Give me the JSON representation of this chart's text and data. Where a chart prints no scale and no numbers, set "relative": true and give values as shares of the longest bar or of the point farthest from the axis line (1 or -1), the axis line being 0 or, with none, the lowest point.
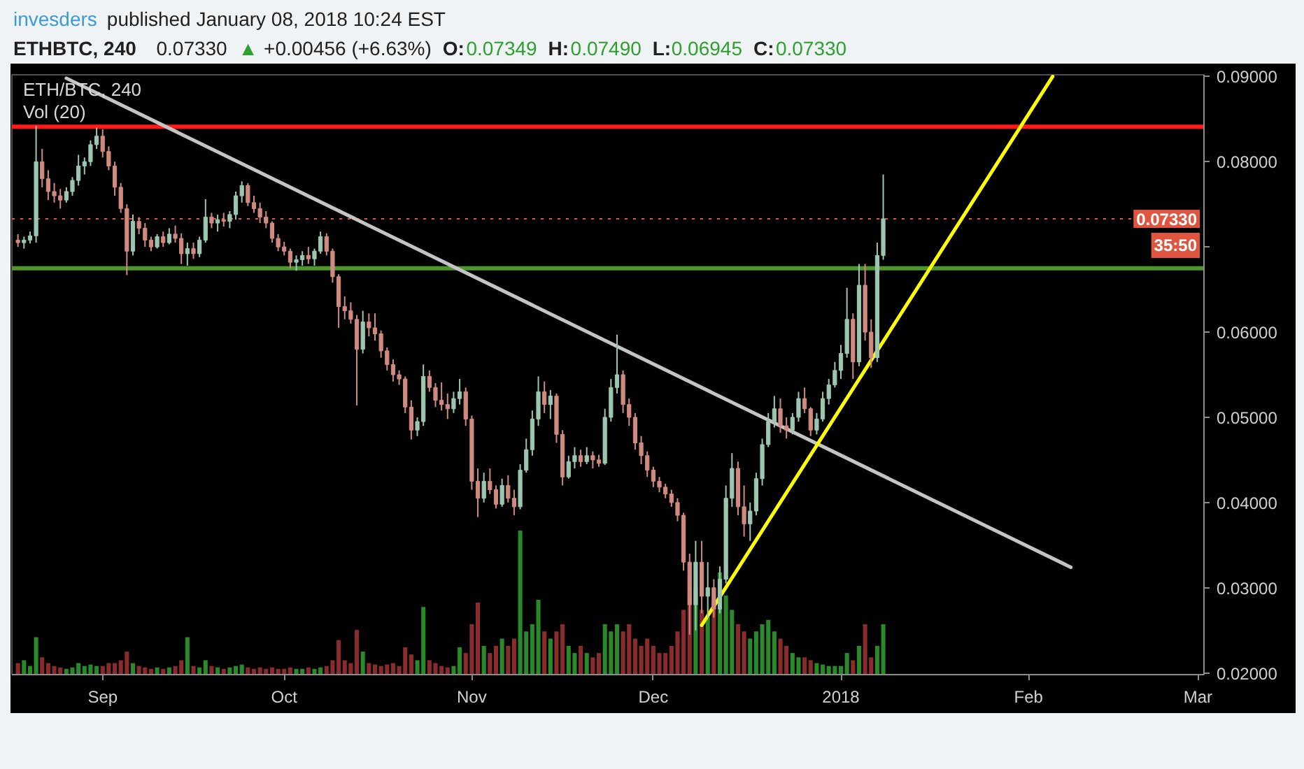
{
  "chart_data": [
    {
      "type": "candlestick",
      "title": "ETHBTC, 240",
      "subtitle": "invesders published January 08, 2018 10:24 EST",
      "x": [
        "2017-08-18",
        "2017-08-19",
        "2017-08-20",
        "2017-08-21",
        "2017-08-22",
        "2017-08-23",
        "2017-08-24",
        "2017-08-25",
        "2017-08-26",
        "2017-08-27",
        "2017-08-28",
        "2017-08-29",
        "2017-08-30",
        "2017-08-31",
        "2017-09-01",
        "2017-09-02",
        "2017-09-03",
        "2017-09-04",
        "2017-09-05",
        "2017-09-06",
        "2017-09-07",
        "2017-09-08",
        "2017-09-09",
        "2017-09-10",
        "2017-09-11",
        "2017-09-12",
        "2017-09-13",
        "2017-09-14",
        "2017-09-15",
        "2017-09-16",
        "2017-09-17",
        "2017-09-18",
        "2017-09-19",
        "2017-09-20",
        "2017-09-21",
        "2017-09-22",
        "2017-09-23",
        "2017-09-24",
        "2017-09-25",
        "2017-09-26",
        "2017-09-27",
        "2017-09-28",
        "2017-09-29",
        "2017-09-30",
        "2017-10-01",
        "2017-10-02",
        "2017-10-03",
        "2017-10-04",
        "2017-10-05",
        "2017-10-06",
        "2017-10-07",
        "2017-10-08",
        "2017-10-09",
        "2017-10-10",
        "2017-10-11",
        "2017-10-12",
        "2017-10-13",
        "2017-10-14",
        "2017-10-15",
        "2017-10-16",
        "2017-10-17",
        "2017-10-18",
        "2017-10-19",
        "2017-10-20",
        "2017-10-21",
        "2017-10-22",
        "2017-10-23",
        "2017-10-24",
        "2017-10-25",
        "2017-10-26",
        "2017-10-27",
        "2017-10-28",
        "2017-10-29",
        "2017-10-30",
        "2017-10-31",
        "2017-11-01",
        "2017-11-02",
        "2017-11-03",
        "2017-11-04",
        "2017-11-05",
        "2017-11-06",
        "2017-11-07",
        "2017-11-08",
        "2017-11-09",
        "2017-11-10",
        "2017-11-11",
        "2017-11-12",
        "2017-11-13",
        "2017-11-14",
        "2017-11-15",
        "2017-11-16",
        "2017-11-17",
        "2017-11-18",
        "2017-11-19",
        "2017-11-20",
        "2017-11-21",
        "2017-11-22",
        "2017-11-23",
        "2017-11-24",
        "2017-11-25",
        "2017-11-26",
        "2017-11-27",
        "2017-11-28",
        "2017-11-29",
        "2017-11-30",
        "2017-12-01",
        "2017-12-02",
        "2017-12-03",
        "2017-12-04",
        "2017-12-05",
        "2017-12-06",
        "2017-12-07",
        "2017-12-08",
        "2017-12-09",
        "2017-12-10",
        "2017-12-11",
        "2017-12-12",
        "2017-12-13",
        "2017-12-14",
        "2017-12-15",
        "2017-12-16",
        "2017-12-17",
        "2017-12-18",
        "2017-12-19",
        "2017-12-20",
        "2017-12-21",
        "2017-12-22",
        "2017-12-23",
        "2017-12-24",
        "2017-12-25",
        "2017-12-26",
        "2017-12-27",
        "2017-12-28",
        "2017-12-29",
        "2017-12-30",
        "2017-12-31",
        "2018-01-01",
        "2018-01-02",
        "2018-01-03",
        "2018-01-04",
        "2018-01-05",
        "2018-01-06",
        "2018-01-07",
        "2018-01-08"
      ],
      "series": [
        {
          "ohlc": [
            [
              0.0708,
              0.0715,
              0.07,
              0.0705
            ],
            [
              0.0705,
              0.0712,
              0.0698,
              0.0708
            ],
            [
              0.0708,
              0.0718,
              0.0704,
              0.0713
            ],
            [
              0.0713,
              0.0842,
              0.0705,
              0.08
            ],
            [
              0.08,
              0.0815,
              0.077,
              0.078
            ],
            [
              0.078,
              0.079,
              0.0755,
              0.0765
            ],
            [
              0.0765,
              0.0775,
              0.0752,
              0.076
            ],
            [
              0.076,
              0.0768,
              0.0745,
              0.0755
            ],
            [
              0.0755,
              0.077,
              0.0752,
              0.0765
            ],
            [
              0.0765,
              0.0782,
              0.076,
              0.0778
            ],
            [
              0.0778,
              0.0808,
              0.0772,
              0.0795
            ],
            [
              0.0795,
              0.0805,
              0.0785,
              0.08
            ],
            [
              0.08,
              0.0825,
              0.0795,
              0.082
            ],
            [
              0.082,
              0.084,
              0.0815,
              0.083
            ],
            [
              0.083,
              0.0838,
              0.0805,
              0.0812
            ],
            [
              0.0812,
              0.0818,
              0.079,
              0.0795
            ],
            [
              0.0795,
              0.08,
              0.076,
              0.077
            ],
            [
              0.077,
              0.0775,
              0.074,
              0.0745
            ],
            [
              0.0745,
              0.075,
              0.0667,
              0.0695
            ],
            [
              0.0695,
              0.0738,
              0.069,
              0.073
            ],
            [
              0.073,
              0.0735,
              0.0715,
              0.0722
            ],
            [
              0.0722,
              0.0728,
              0.07,
              0.0708
            ],
            [
              0.0708,
              0.0712,
              0.0695,
              0.07
            ],
            [
              0.07,
              0.0715,
              0.0698,
              0.0712
            ],
            [
              0.0712,
              0.0718,
              0.07,
              0.0705
            ],
            [
              0.0705,
              0.0722,
              0.0703,
              0.0715
            ],
            [
              0.0715,
              0.0725,
              0.0705,
              0.071
            ],
            [
              0.071,
              0.0716,
              0.068,
              0.0692
            ],
            [
              0.0692,
              0.0705,
              0.0678,
              0.0698
            ],
            [
              0.0698,
              0.0705,
              0.0686,
              0.0692
            ],
            [
              0.0692,
              0.0712,
              0.0688,
              0.0708
            ],
            [
              0.0708,
              0.0756,
              0.0705,
              0.0735
            ],
            [
              0.0735,
              0.074,
              0.0722,
              0.0728
            ],
            [
              0.0728,
              0.0738,
              0.0718,
              0.0732
            ],
            [
              0.0732,
              0.074,
              0.0724,
              0.073
            ],
            [
              0.073,
              0.0742,
              0.0722,
              0.0738
            ],
            [
              0.0738,
              0.0765,
              0.0732,
              0.076
            ],
            [
              0.076,
              0.0777,
              0.0752,
              0.0772
            ],
            [
              0.0772,
              0.0775,
              0.0748,
              0.0752
            ],
            [
              0.0752,
              0.076,
              0.074,
              0.0745
            ],
            [
              0.0745,
              0.0752,
              0.0728,
              0.0735
            ],
            [
              0.0735,
              0.0742,
              0.0722,
              0.0728
            ],
            [
              0.0728,
              0.073,
              0.0705,
              0.071
            ],
            [
              0.071,
              0.0715,
              0.0695,
              0.07
            ],
            [
              0.07,
              0.0706,
              0.069,
              0.0695
            ],
            [
              0.0695,
              0.0698,
              0.0675,
              0.0682
            ],
            [
              0.0682,
              0.069,
              0.0672,
              0.0685
            ],
            [
              0.0685,
              0.0695,
              0.0678,
              0.069
            ],
            [
              0.069,
              0.07,
              0.068,
              0.0686
            ],
            [
              0.0686,
              0.0698,
              0.0678,
              0.0695
            ],
            [
              0.0695,
              0.0718,
              0.0692,
              0.0712
            ],
            [
              0.0712,
              0.0716,
              0.069,
              0.0695
            ],
            [
              0.0695,
              0.0698,
              0.0658,
              0.0665
            ],
            [
              0.0665,
              0.0668,
              0.0605,
              0.063
            ],
            [
              0.063,
              0.0642,
              0.0615,
              0.0625
            ],
            [
              0.0625,
              0.0635,
              0.061,
              0.0615
            ],
            [
              0.0615,
              0.062,
              0.0514,
              0.058
            ],
            [
              0.058,
              0.0625,
              0.0575,
              0.0612
            ],
            [
              0.0612,
              0.0622,
              0.0595,
              0.0605
            ],
            [
              0.0605,
              0.0622,
              0.059,
              0.0598
            ],
            [
              0.0598,
              0.0602,
              0.057,
              0.0578
            ],
            [
              0.0578,
              0.0582,
              0.0555,
              0.0562
            ],
            [
              0.0562,
              0.0568,
              0.0542,
              0.055
            ],
            [
              0.055,
              0.0555,
              0.0538,
              0.0545
            ],
            [
              0.0545,
              0.0548,
              0.0505,
              0.0512
            ],
            [
              0.0512,
              0.052,
              0.0474,
              0.0485
            ],
            [
              0.0485,
              0.05,
              0.0478,
              0.0495
            ],
            [
              0.0495,
              0.0562,
              0.049,
              0.0548
            ],
            [
              0.0548,
              0.0555,
              0.053,
              0.0535
            ],
            [
              0.0535,
              0.054,
              0.0512,
              0.052
            ],
            [
              0.052,
              0.0541,
              0.0508,
              0.0515
            ],
            [
              0.0515,
              0.0528,
              0.0498,
              0.051
            ],
            [
              0.051,
              0.053,
              0.0505,
              0.0522
            ],
            [
              0.0522,
              0.0545,
              0.0515,
              0.053
            ],
            [
              0.053,
              0.0535,
              0.049,
              0.0498
            ],
            [
              0.0498,
              0.0502,
              0.0415,
              0.0425
            ],
            [
              0.0425,
              0.044,
              0.0383,
              0.0405
            ],
            [
              0.0405,
              0.0435,
              0.04,
              0.0425
            ],
            [
              0.0425,
              0.044,
              0.041,
              0.0415
            ],
            [
              0.0415,
              0.042,
              0.0393,
              0.0398
            ],
            [
              0.0398,
              0.0428,
              0.0395,
              0.042
            ],
            [
              0.042,
              0.0432,
              0.04,
              0.0405
            ],
            [
              0.0405,
              0.0415,
              0.0385,
              0.0395
            ],
            [
              0.0395,
              0.0445,
              0.0392,
              0.0438
            ],
            [
              0.0438,
              0.0475,
              0.0435,
              0.0462
            ],
            [
              0.0462,
              0.0508,
              0.0455,
              0.0498
            ],
            [
              0.0498,
              0.0548,
              0.049,
              0.053
            ],
            [
              0.053,
              0.0542,
              0.0505,
              0.0515
            ],
            [
              0.0515,
              0.0532,
              0.0498,
              0.0525
            ],
            [
              0.0525,
              0.0528,
              0.047,
              0.048
            ],
            [
              0.048,
              0.0485,
              0.042,
              0.043
            ],
            [
              0.043,
              0.0455,
              0.0428,
              0.0448
            ],
            [
              0.0448,
              0.0465,
              0.044,
              0.0455
            ],
            [
              0.0455,
              0.0462,
              0.0442,
              0.0448
            ],
            [
              0.0448,
              0.0465,
              0.0445,
              0.0455
            ],
            [
              0.0455,
              0.046,
              0.044,
              0.045
            ],
            [
              0.045,
              0.0456,
              0.0442,
              0.0446
            ],
            [
              0.0446,
              0.051,
              0.0444,
              0.05
            ],
            [
              0.05,
              0.0545,
              0.0495,
              0.0535
            ],
            [
              0.0535,
              0.0597,
              0.0528,
              0.055
            ],
            [
              0.055,
              0.0555,
              0.0505,
              0.0515
            ],
            [
              0.0515,
              0.0522,
              0.049,
              0.05
            ],
            [
              0.05,
              0.0505,
              0.0462,
              0.047
            ],
            [
              0.047,
              0.0478,
              0.0445,
              0.0455
            ],
            [
              0.0455,
              0.046,
              0.043,
              0.0438
            ],
            [
              0.0438,
              0.0442,
              0.0418,
              0.0425
            ],
            [
              0.0425,
              0.043,
              0.0412,
              0.0418
            ],
            [
              0.0418,
              0.0422,
              0.0405,
              0.041
            ],
            [
              0.041,
              0.0415,
              0.0395,
              0.04
            ],
            [
              0.04,
              0.0405,
              0.0378,
              0.0385
            ],
            [
              0.0385,
              0.0388,
              0.032,
              0.033
            ],
            [
              0.033,
              0.034,
              0.0245,
              0.028
            ],
            [
              0.028,
              0.0355,
              0.025,
              0.033
            ],
            [
              0.033,
              0.0355,
              0.027,
              0.029
            ],
            [
              0.029,
              0.033,
              0.0265,
              0.03
            ],
            [
              0.03,
              0.031,
              0.0265,
              0.0275
            ],
            [
              0.0275,
              0.0325,
              0.027,
              0.031
            ],
            [
              0.031,
              0.042,
              0.0305,
              0.0405
            ],
            [
              0.0405,
              0.0458,
              0.0395,
              0.044
            ],
            [
              0.044,
              0.0448,
              0.0385,
              0.0395
            ],
            [
              0.0395,
              0.042,
              0.036,
              0.0375
            ],
            [
              0.0375,
              0.04,
              0.0355,
              0.039
            ],
            [
              0.039,
              0.0435,
              0.0385,
              0.0428
            ],
            [
              0.0428,
              0.0475,
              0.042,
              0.0468
            ],
            [
              0.0468,
              0.0505,
              0.0465,
              0.0495
            ],
            [
              0.0495,
              0.0525,
              0.0488,
              0.051
            ],
            [
              0.051,
              0.0522,
              0.0482,
              0.049
            ],
            [
              0.049,
              0.05,
              0.0475,
              0.0485
            ],
            [
              0.0485,
              0.0505,
              0.048,
              0.05
            ],
            [
              0.05,
              0.053,
              0.0495,
              0.0522
            ],
            [
              0.0522,
              0.0535,
              0.0505,
              0.051
            ],
            [
              0.051,
              0.0512,
              0.0478,
              0.0485
            ],
            [
              0.0485,
              0.0505,
              0.048,
              0.0498
            ],
            [
              0.0498,
              0.053,
              0.0495,
              0.0522
            ],
            [
              0.0522,
              0.0545,
              0.0515,
              0.0538
            ],
            [
              0.0538,
              0.0565,
              0.0535,
              0.0555
            ],
            [
              0.0555,
              0.0585,
              0.0545,
              0.0575
            ],
            [
              0.0575,
              0.0652,
              0.057,
              0.0615
            ],
            [
              0.0615,
              0.0622,
              0.0545,
              0.0565
            ],
            [
              0.0565,
              0.068,
              0.056,
              0.0655
            ],
            [
              0.0655,
              0.068,
              0.059,
              0.06
            ],
            [
              0.06,
              0.0615,
              0.0558,
              0.057
            ],
            [
              0.057,
              0.0705,
              0.0565,
              0.069
            ],
            [
              0.069,
              0.0785,
              0.0685,
              0.0733
            ]
          ],
          "colors": [
            "#d08a80",
            "#9cc6b0",
            "#9cc6b0",
            "#9cc6b0",
            "#d08a80",
            "#d08a80",
            "#d08a80",
            "#d08a80",
            "#9cc6b0",
            "#9cc6b0",
            "#9cc6b0",
            "#9cc6b0",
            "#9cc6b0",
            "#9cc6b0",
            "#d08a80",
            "#d08a80",
            "#d08a80",
            "#d08a80",
            "#d08a80",
            "#9cc6b0",
            "#d08a80",
            "#d08a80",
            "#d08a80",
            "#9cc6b0",
            "#d08a80",
            "#9cc6b0",
            "#d08a80",
            "#d08a80",
            "#9cc6b0",
            "#d08a80",
            "#9cc6b0",
            "#9cc6b0",
            "#d08a80",
            "#9cc6b0",
            "#d08a80",
            "#9cc6b0",
            "#9cc6b0",
            "#9cc6b0",
            "#d08a80",
            "#d08a80",
            "#d08a80",
            "#d08a80",
            "#d08a80",
            "#d08a80",
            "#d08a80",
            "#d08a80",
            "#9cc6b0",
            "#9cc6b0",
            "#d08a80",
            "#9cc6b0",
            "#9cc6b0",
            "#d08a80",
            "#d08a80",
            "#d08a80",
            "#d08a80",
            "#d08a80",
            "#d08a80",
            "#9cc6b0",
            "#d08a80",
            "#d08a80",
            "#d08a80",
            "#d08a80",
            "#d08a80",
            "#d08a80",
            "#d08a80",
            "#d08a80",
            "#9cc6b0",
            "#9cc6b0",
            "#d08a80",
            "#d08a80",
            "#d08a80",
            "#d08a80",
            "#9cc6b0",
            "#9cc6b0",
            "#d08a80",
            "#d08a80",
            "#d08a80",
            "#9cc6b0",
            "#d08a80",
            "#d08a80",
            "#9cc6b0",
            "#d08a80",
            "#d08a80",
            "#9cc6b0",
            "#9cc6b0",
            "#9cc6b0",
            "#9cc6b0",
            "#d08a80",
            "#9cc6b0",
            "#d08a80",
            "#d08a80",
            "#9cc6b0",
            "#9cc6b0",
            "#d08a80",
            "#9cc6b0",
            "#d08a80",
            "#d08a80",
            "#9cc6b0",
            "#9cc6b0",
            "#9cc6b0",
            "#d08a80",
            "#d08a80",
            "#d08a80",
            "#d08a80",
            "#d08a80",
            "#d08a80",
            "#d08a80",
            "#d08a80",
            "#d08a80",
            "#d08a80",
            "#d08a80",
            "#d08a80",
            "#9cc6b0",
            "#d08a80",
            "#9cc6b0",
            "#d08a80",
            "#9cc6b0",
            "#9cc6b0",
            "#9cc6b0",
            "#d08a80",
            "#d08a80",
            "#9cc6b0",
            "#9cc6b0",
            "#9cc6b0",
            "#9cc6b0",
            "#9cc6b0",
            "#d08a80",
            "#d08a80",
            "#9cc6b0",
            "#9cc6b0",
            "#d08a80",
            "#d08a80",
            "#9cc6b0",
            "#9cc6b0",
            "#9cc6b0",
            "#9cc6b0",
            "#9cc6b0",
            "#9cc6b0",
            "#d08a80",
            "#9cc6b0",
            "#d08a80",
            "#d08a80",
            "#9cc6b0",
            "#9cc6b0"
          ]
        },
        {
          "type": "line",
          "color": "#c4c4c4",
          "x": [
            "2017-08-26",
            "2018-02-08"
          ],
          "values": [
            0.0898,
            0.0324
          ]
        },
        {
          "type": "line",
          "color": "#ffff00",
          "x": [
            "2017-12-09",
            "2018-02-05"
          ],
          "values": [
            0.0256,
            0.09
          ]
        }
      ],
      "xlim": [
        "2017-08-17",
        "2018-03-02"
      ],
      "xticks": [
        {
          "value": "2017-09-01",
          "label": "Sep"
        },
        {
          "value": "2017-10-01",
          "label": "Oct"
        },
        {
          "value": "2017-11-01",
          "label": "Nov"
        },
        {
          "value": "2017-12-01",
          "label": "Dec"
        },
        {
          "value": "2018-01-01",
          "label": "2018"
        },
        {
          "value": "2018-02-01",
          "label": "Feb"
        },
        {
          "value": "2018-03-01",
          "label": "Mar"
        }
      ],
      "ylim": [
        0.0198,
        0.0902
      ],
      "yticks": [
        {
          "value": 0.02,
          "label": "0.02000"
        },
        {
          "value": 0.03,
          "label": "0.03000"
        },
        {
          "value": 0.04,
          "label": "0.04000"
        },
        {
          "value": 0.05,
          "label": "0.05000"
        },
        {
          "value": 0.06,
          "label": "0.06000"
        },
        {
          "value": 0.07,
          "label": null
        },
        {
          "value": 0.08,
          "label": "0.08000"
        },
        {
          "value": 0.09,
          "label": "0.09000"
        }
      ],
      "ref_lines": [
        {
          "axis": "y",
          "value": 0.0841,
          "color": "#ff1a1a"
        },
        {
          "axis": "y",
          "value": 0.0675,
          "color": "#4f962c"
        },
        {
          "axis": "y",
          "value": 0.0733,
          "label": "0.07330",
          "color": "#e0553f",
          "line_style": "dotted"
        }
      ],
      "annotations": [
        "0.07330",
        "▲ +0.00456 (+6.63%)",
        "O:0.07349",
        "H:0.07490",
        "L:0.06945",
        "C:0.07330",
        "ETH/BTC, 240",
        "35:50"
      ]
    },
    {
      "type": "bar",
      "relative": true,
      "title": "Vol (20)",
      "tick_labels": false,
      "xlim": [
        "2017-08-17",
        "2018-03-02"
      ],
      "x": [
        "2017-08-18",
        "2017-08-19",
        "2017-08-20",
        "2017-08-21",
        "2017-08-22",
        "2017-08-23",
        "2017-08-24",
        "2017-08-25",
        "2017-08-26",
        "2017-08-27",
        "2017-08-28",
        "2017-08-29",
        "2017-08-30",
        "2017-08-31",
        "2017-09-01",
        "2017-09-02",
        "2017-09-03",
        "2017-09-04",
        "2017-09-05",
        "2017-09-06",
        "2017-09-07",
        "2017-09-08",
        "2017-09-09",
        "2017-09-10",
        "2017-09-11",
        "2017-09-12",
        "2017-09-13",
        "2017-09-14",
        "2017-09-15",
        "2017-09-16",
        "2017-09-17",
        "2017-09-18",
        "2017-09-19",
        "2017-09-20",
        "2017-09-21",
        "2017-09-22",
        "2017-09-23",
        "2017-09-24",
        "2017-09-25",
        "2017-09-26",
        "2017-09-27",
        "2017-09-28",
        "2017-09-29",
        "2017-09-30",
        "2017-10-01",
        "2017-10-02",
        "2017-10-03",
        "2017-10-04",
        "2017-10-05",
        "2017-10-06",
        "2017-10-07",
        "2017-10-08",
        "2017-10-09",
        "2017-10-10",
        "2017-10-11",
        "2017-10-12",
        "2017-10-13",
        "2017-10-14",
        "2017-10-15",
        "2017-10-16",
        "2017-10-17",
        "2017-10-18",
        "2017-10-19",
        "2017-10-20",
        "2017-10-21",
        "2017-10-22",
        "2017-10-23",
        "2017-10-24",
        "2017-10-25",
        "2017-10-26",
        "2017-10-27",
        "2017-10-28",
        "2017-10-29",
        "2017-10-30",
        "2017-10-31",
        "2017-11-01",
        "2017-11-02",
        "2017-11-03",
        "2017-11-04",
        "2017-11-05",
        "2017-11-06",
        "2017-11-07",
        "2017-11-08",
        "2017-11-09",
        "2017-11-10",
        "2017-11-11",
        "2017-11-12",
        "2017-11-13",
        "2017-11-14",
        "2017-11-15",
        "2017-11-16",
        "2017-11-17",
        "2017-11-18",
        "2017-11-19",
        "2017-11-20",
        "2017-11-21",
        "2017-11-22",
        "2017-11-23",
        "2017-11-24",
        "2017-11-25",
        "2017-11-26",
        "2017-11-27",
        "2017-11-28",
        "2017-11-29",
        "2017-11-30",
        "2017-12-01",
        "2017-12-02",
        "2017-12-03",
        "2017-12-04",
        "2017-12-05",
        "2017-12-06",
        "2017-12-07",
        "2017-12-08",
        "2017-12-09",
        "2017-12-10",
        "2017-12-11",
        "2017-12-12",
        "2017-12-13",
        "2017-12-14",
        "2017-12-15",
        "2017-12-16",
        "2017-12-17",
        "2017-12-18",
        "2017-12-19",
        "2017-12-20",
        "2017-12-21",
        "2017-12-22",
        "2017-12-23",
        "2017-12-24",
        "2017-12-25",
        "2017-12-26",
        "2017-12-27",
        "2017-12-28",
        "2017-12-29",
        "2017-12-30",
        "2017-12-31",
        "2018-01-01",
        "2018-01-02",
        "2018-01-03",
        "2018-01-04",
        "2018-01-05",
        "2018-01-06",
        "2018-01-07",
        "2018-01-08"
      ],
      "values": [
        0.08,
        0.1,
        0.06,
        0.26,
        0.12,
        0.08,
        0.06,
        0.05,
        0.04,
        0.05,
        0.08,
        0.06,
        0.07,
        0.06,
        0.06,
        0.08,
        0.08,
        0.1,
        0.16,
        0.08,
        0.06,
        0.05,
        0.04,
        0.05,
        0.04,
        0.05,
        0.06,
        0.1,
        0.26,
        0.06,
        0.05,
        0.1,
        0.06,
        0.05,
        0.04,
        0.05,
        0.06,
        0.07,
        0.05,
        0.04,
        0.05,
        0.04,
        0.05,
        0.04,
        0.04,
        0.05,
        0.04,
        0.04,
        0.05,
        0.04,
        0.05,
        0.06,
        0.1,
        0.24,
        0.1,
        0.08,
        0.31,
        0.16,
        0.08,
        0.07,
        0.06,
        0.07,
        0.08,
        0.06,
        0.19,
        0.14,
        0.1,
        0.47,
        0.1,
        0.08,
        0.06,
        0.05,
        0.06,
        0.19,
        0.15,
        0.35,
        0.5,
        0.2,
        0.15,
        0.2,
        0.25,
        0.2,
        0.25,
        1.0,
        0.3,
        0.35,
        0.52,
        0.3,
        0.25,
        0.3,
        0.35,
        0.2,
        0.15,
        0.2,
        0.15,
        0.12,
        0.15,
        0.35,
        0.3,
        0.35,
        0.3,
        0.35,
        0.25,
        0.2,
        0.25,
        0.2,
        0.15,
        0.15,
        0.2,
        0.3,
        0.45,
        0.55,
        0.6,
        0.45,
        0.4,
        0.5,
        0.71,
        0.55,
        0.45,
        0.35,
        0.3,
        0.25,
        0.3,
        0.35,
        0.38,
        0.3,
        0.25,
        0.2,
        0.15,
        0.12,
        0.12,
        0.1,
        0.08,
        0.07,
        0.06,
        0.06,
        0.06,
        0.15,
        0.1,
        0.2,
        0.35,
        0.12,
        0.2,
        0.35
      ],
      "colors": [
        "#8b2c2c",
        "#2a8a2a",
        "#2a8a2a",
        "#2a8a2a",
        "#8b2c2c",
        "#8b2c2c",
        "#8b2c2c",
        "#8b2c2c",
        "#2a8a2a",
        "#2a8a2a",
        "#2a8a2a",
        "#2a8a2a",
        "#2a8a2a",
        "#2a8a2a",
        "#8b2c2c",
        "#8b2c2c",
        "#8b2c2c",
        "#8b2c2c",
        "#8b2c2c",
        "#2a8a2a",
        "#8b2c2c",
        "#8b2c2c",
        "#8b2c2c",
        "#2a8a2a",
        "#8b2c2c",
        "#2a8a2a",
        "#8b2c2c",
        "#8b2c2c",
        "#2a8a2a",
        "#8b2c2c",
        "#2a8a2a",
        "#2a8a2a",
        "#8b2c2c",
        "#2a8a2a",
        "#8b2c2c",
        "#2a8a2a",
        "#2a8a2a",
        "#2a8a2a",
        "#8b2c2c",
        "#8b2c2c",
        "#8b2c2c",
        "#8b2c2c",
        "#8b2c2c",
        "#8b2c2c",
        "#8b2c2c",
        "#8b2c2c",
        "#2a8a2a",
        "#2a8a2a",
        "#8b2c2c",
        "#2a8a2a",
        "#2a8a2a",
        "#8b2c2c",
        "#8b2c2c",
        "#8b2c2c",
        "#8b2c2c",
        "#8b2c2c",
        "#8b2c2c",
        "#2a8a2a",
        "#8b2c2c",
        "#8b2c2c",
        "#8b2c2c",
        "#8b2c2c",
        "#8b2c2c",
        "#8b2c2c",
        "#8b2c2c",
        "#8b2c2c",
        "#2a8a2a",
        "#2a8a2a",
        "#8b2c2c",
        "#8b2c2c",
        "#8b2c2c",
        "#8b2c2c",
        "#2a8a2a",
        "#2a8a2a",
        "#8b2c2c",
        "#8b2c2c",
        "#8b2c2c",
        "#2a8a2a",
        "#8b2c2c",
        "#8b2c2c",
        "#2a8a2a",
        "#8b2c2c",
        "#8b2c2c",
        "#2a8a2a",
        "#2a8a2a",
        "#2a8a2a",
        "#2a8a2a",
        "#8b2c2c",
        "#2a8a2a",
        "#8b2c2c",
        "#8b2c2c",
        "#2a8a2a",
        "#2a8a2a",
        "#8b2c2c",
        "#2a8a2a",
        "#8b2c2c",
        "#8b2c2c",
        "#2a8a2a",
        "#2a8a2a",
        "#2a8a2a",
        "#8b2c2c",
        "#8b2c2c",
        "#8b2c2c",
        "#8b2c2c",
        "#8b2c2c",
        "#8b2c2c",
        "#8b2c2c",
        "#8b2c2c",
        "#8b2c2c",
        "#8b2c2c",
        "#8b2c2c",
        "#8b2c2c",
        "#2a8a2a",
        "#8b2c2c",
        "#2a8a2a",
        "#8b2c2c",
        "#2a8a2a",
        "#2a8a2a",
        "#2a8a2a",
        "#8b2c2c",
        "#8b2c2c",
        "#2a8a2a",
        "#2a8a2a",
        "#2a8a2a",
        "#2a8a2a",
        "#2a8a2a",
        "#8b2c2c",
        "#8b2c2c",
        "#2a8a2a",
        "#2a8a2a",
        "#8b2c2c",
        "#8b2c2c",
        "#2a8a2a",
        "#2a8a2a",
        "#2a8a2a",
        "#2a8a2a",
        "#2a8a2a",
        "#2a8a2a",
        "#8b2c2c",
        "#2a8a2a",
        "#8b2c2c",
        "#8b2c2c",
        "#2a8a2a",
        "#2a8a2a"
      ]
    }
  ]
}
